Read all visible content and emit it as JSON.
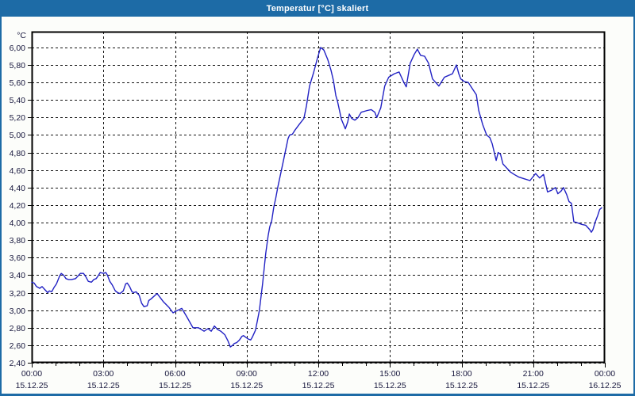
{
  "window": {
    "title": "Temperatur [°C] skaliert"
  },
  "colors": {
    "titlebar_bg": "#1d6ba6",
    "window_border": "#1d6ba6",
    "content_bg": "#fcfdfa",
    "plot_bg": "#ffffff",
    "grid": "#141414",
    "axis": "#000000",
    "text": "#16163c",
    "line": "#2222c4"
  },
  "chart_data": {
    "type": "line",
    "title": "Temperatur [°C] skaliert",
    "ylabel": "°C",
    "xlabel": "",
    "grid": "dashed",
    "legend": "none",
    "ylim": [
      2.4,
      6.18
    ],
    "xlim_minutes": [
      0,
      1440
    ],
    "minor_tick_every_hours": 1,
    "major_tick_every_hours": 3,
    "y_ticks": [
      {
        "value": 2.4,
        "label": "2,40"
      },
      {
        "value": 2.6,
        "label": "2,60"
      },
      {
        "value": 2.8,
        "label": "2,80"
      },
      {
        "value": 3.0,
        "label": "3,00"
      },
      {
        "value": 3.2,
        "label": "3,20"
      },
      {
        "value": 3.4,
        "label": "3,40"
      },
      {
        "value": 3.6,
        "label": "3,60"
      },
      {
        "value": 3.8,
        "label": "3,80"
      },
      {
        "value": 4.0,
        "label": "4,00"
      },
      {
        "value": 4.2,
        "label": "4,20"
      },
      {
        "value": 4.4,
        "label": "4,40"
      },
      {
        "value": 4.6,
        "label": "4,60"
      },
      {
        "value": 4.8,
        "label": "4,80"
      },
      {
        "value": 5.0,
        "label": "5,00"
      },
      {
        "value": 5.2,
        "label": "5,20"
      },
      {
        "value": 5.4,
        "label": "5,40"
      },
      {
        "value": 5.6,
        "label": "5,60"
      },
      {
        "value": 5.8,
        "label": "5,80"
      },
      {
        "value": 6.0,
        "label": "6,00"
      }
    ],
    "x_ticks_major": [
      {
        "hour": 0,
        "time": "00:00",
        "date": "15.12.25"
      },
      {
        "hour": 3,
        "time": "03:00",
        "date": "15.12.25"
      },
      {
        "hour": 6,
        "time": "06:00",
        "date": "15.12.25"
      },
      {
        "hour": 9,
        "time": "09:00",
        "date": "15.12.25"
      },
      {
        "hour": 12,
        "time": "12:00",
        "date": "15.12.25"
      },
      {
        "hour": 15,
        "time": "15:00",
        "date": "15.12.25"
      },
      {
        "hour": 18,
        "time": "18:00",
        "date": "15.12.25"
      },
      {
        "hour": 21,
        "time": "21:00",
        "date": "15.12.25"
      },
      {
        "hour": 24,
        "time": "00:00",
        "date": "16.12.25"
      }
    ],
    "series": [
      {
        "name": "Temperatur [°C]",
        "color": "#2222c4",
        "points_min_val": [
          [
            0,
            3.32
          ],
          [
            6,
            3.31
          ],
          [
            12,
            3.27
          ],
          [
            20,
            3.25
          ],
          [
            26,
            3.27
          ],
          [
            32,
            3.24
          ],
          [
            40,
            3.2
          ],
          [
            44,
            3.22
          ],
          [
            50,
            3.21
          ],
          [
            56,
            3.26
          ],
          [
            62,
            3.3
          ],
          [
            70,
            3.39
          ],
          [
            74,
            3.42
          ],
          [
            80,
            3.4
          ],
          [
            86,
            3.36
          ],
          [
            92,
            3.35
          ],
          [
            100,
            3.35
          ],
          [
            110,
            3.36
          ],
          [
            116,
            3.39
          ],
          [
            122,
            3.42
          ],
          [
            130,
            3.42
          ],
          [
            136,
            3.38
          ],
          [
            142,
            3.33
          ],
          [
            150,
            3.32
          ],
          [
            156,
            3.35
          ],
          [
            162,
            3.36
          ],
          [
            168,
            3.4
          ],
          [
            172,
            3.43
          ],
          [
            180,
            3.42
          ],
          [
            186,
            3.43
          ],
          [
            190,
            3.4
          ],
          [
            196,
            3.33
          ],
          [
            202,
            3.29
          ],
          [
            210,
            3.22
          ],
          [
            216,
            3.2
          ],
          [
            222,
            3.19
          ],
          [
            230,
            3.22
          ],
          [
            236,
            3.3
          ],
          [
            240,
            3.31
          ],
          [
            246,
            3.27
          ],
          [
            252,
            3.21
          ],
          [
            256,
            3.2
          ],
          [
            262,
            3.21
          ],
          [
            270,
            3.17
          ],
          [
            276,
            3.08
          ],
          [
            282,
            3.04
          ],
          [
            290,
            3.05
          ],
          [
            294,
            3.11
          ],
          [
            300,
            3.13
          ],
          [
            315,
            3.19
          ],
          [
            330,
            3.1
          ],
          [
            345,
            3.03
          ],
          [
            355,
            2.97
          ],
          [
            363,
            2.99
          ],
          [
            377,
            3.02
          ],
          [
            389,
            2.93
          ],
          [
            405,
            2.8
          ],
          [
            419,
            2.8
          ],
          [
            433,
            2.76
          ],
          [
            443,
            2.79
          ],
          [
            451,
            2.76
          ],
          [
            459,
            2.82
          ],
          [
            467,
            2.78
          ],
          [
            475,
            2.76
          ],
          [
            485,
            2.72
          ],
          [
            493,
            2.65
          ],
          [
            499,
            2.58
          ],
          [
            505,
            2.6
          ],
          [
            509,
            2.62
          ],
          [
            515,
            2.63
          ],
          [
            522,
            2.66
          ],
          [
            528,
            2.7
          ],
          [
            532,
            2.71
          ],
          [
            538,
            2.69
          ],
          [
            544,
            2.67
          ],
          [
            550,
            2.66
          ],
          [
            554,
            2.69
          ],
          [
            562,
            2.77
          ],
          [
            567,
            2.88
          ],
          [
            572,
            3.0
          ],
          [
            580,
            3.3
          ],
          [
            588,
            3.65
          ],
          [
            594,
            3.85
          ],
          [
            598,
            3.95
          ],
          [
            603,
            4.02
          ],
          [
            608,
            4.17
          ],
          [
            613,
            4.28
          ],
          [
            618,
            4.4
          ],
          [
            625,
            4.55
          ],
          [
            632,
            4.7
          ],
          [
            638,
            4.83
          ],
          [
            644,
            4.96
          ],
          [
            648,
            5.0
          ],
          [
            655,
            5.01
          ],
          [
            662,
            5.06
          ],
          [
            672,
            5.12
          ],
          [
            684,
            5.19
          ],
          [
            690,
            5.33
          ],
          [
            698,
            5.56
          ],
          [
            708,
            5.71
          ],
          [
            718,
            5.88
          ],
          [
            726,
            6.0
          ],
          [
            734,
            5.97
          ],
          [
            744,
            5.86
          ],
          [
            752,
            5.74
          ],
          [
            758,
            5.62
          ],
          [
            764,
            5.45
          ],
          [
            768,
            5.39
          ],
          [
            778,
            5.18
          ],
          [
            788,
            5.07
          ],
          [
            794,
            5.15
          ],
          [
            798,
            5.24
          ],
          [
            804,
            5.19
          ],
          [
            812,
            5.17
          ],
          [
            820,
            5.2
          ],
          [
            828,
            5.26
          ],
          [
            843,
            5.28
          ],
          [
            853,
            5.29
          ],
          [
            862,
            5.26
          ],
          [
            867,
            5.2
          ],
          [
            877,
            5.31
          ],
          [
            887,
            5.56
          ],
          [
            897,
            5.66
          ],
          [
            911,
            5.7
          ],
          [
            923,
            5.72
          ],
          [
            935,
            5.6
          ],
          [
            941,
            5.55
          ],
          [
            951,
            5.82
          ],
          [
            961,
            5.92
          ],
          [
            969,
            5.98
          ],
          [
            977,
            5.91
          ],
          [
            987,
            5.9
          ],
          [
            997,
            5.82
          ],
          [
            1007,
            5.64
          ],
          [
            1017,
            5.59
          ],
          [
            1023,
            5.56
          ],
          [
            1037,
            5.66
          ],
          [
            1047,
            5.68
          ],
          [
            1057,
            5.7
          ],
          [
            1067,
            5.8
          ],
          [
            1073,
            5.7
          ],
          [
            1078,
            5.64
          ],
          [
            1087,
            5.61
          ],
          [
            1097,
            5.6
          ],
          [
            1107,
            5.53
          ],
          [
            1117,
            5.46
          ],
          [
            1123,
            5.28
          ],
          [
            1133,
            5.12
          ],
          [
            1143,
            5.0
          ],
          [
            1151,
            4.97
          ],
          [
            1157,
            4.9
          ],
          [
            1167,
            4.71
          ],
          [
            1172,
            4.8
          ],
          [
            1178,
            4.78
          ],
          [
            1184,
            4.67
          ],
          [
            1192,
            4.63
          ],
          [
            1202,
            4.58
          ],
          [
            1212,
            4.55
          ],
          [
            1224,
            4.52
          ],
          [
            1238,
            4.5
          ],
          [
            1252,
            4.48
          ],
          [
            1266,
            4.56
          ],
          [
            1276,
            4.51
          ],
          [
            1286,
            4.55
          ],
          [
            1296,
            4.35
          ],
          [
            1306,
            4.37
          ],
          [
            1316,
            4.4
          ],
          [
            1322,
            4.33
          ],
          [
            1330,
            4.36
          ],
          [
            1336,
            4.4
          ],
          [
            1344,
            4.32
          ],
          [
            1350,
            4.24
          ],
          [
            1356,
            4.22
          ],
          [
            1362,
            4.01
          ],
          [
            1370,
            4.0
          ],
          [
            1382,
            3.98
          ],
          [
            1392,
            3.97
          ],
          [
            1396,
            3.95
          ],
          [
            1402,
            3.92
          ],
          [
            1406,
            3.89
          ],
          [
            1410,
            3.92
          ],
          [
            1416,
            4.01
          ],
          [
            1422,
            4.08
          ],
          [
            1427,
            4.15
          ],
          [
            1432,
            4.17
          ]
        ]
      }
    ]
  }
}
